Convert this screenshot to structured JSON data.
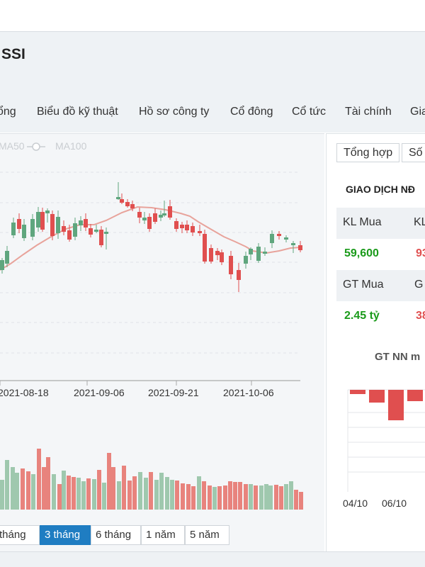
{
  "header": {
    "ticker": "SSI",
    "tabs": [
      "ổng",
      "Biểu đồ kỹ thuật",
      "Hồ sơ công ty",
      "Cổ đông",
      "Cổ tức",
      "Tài chính",
      "Gia"
    ]
  },
  "chart": {
    "legend": [
      "MA50",
      "MA100"
    ],
    "date_labels": [
      "2021-08-18",
      "2021-09-06",
      "2021-09-21",
      "2021-10-06"
    ],
    "colors": {
      "up": "#5fa67e",
      "down": "#e04f4f",
      "ma": "#e8a39b",
      "vol_up": "#9fc8ae",
      "vol_down": "#e8837d"
    }
  },
  "range_buttons": [
    {
      "label": "tháng",
      "active": false
    },
    {
      "label": "3 tháng",
      "active": true
    },
    {
      "label": "6 tháng",
      "active": false
    },
    {
      "label": "1 năm",
      "active": false
    },
    {
      "label": "5 năm",
      "active": false
    }
  ],
  "right_panel": {
    "tabs": [
      "Tổng hợp",
      "Số"
    ],
    "section_title": "GIAO DỊCH NĐ",
    "kl_mua_label": "KL Mua",
    "kl_mua_value": "59,600",
    "kl_ban_label": "KL",
    "kl_ban_value": "93",
    "gt_mua_label": "GT Mua",
    "gt_mua_value": "2.45 tỷ",
    "gt_ban_label": "G",
    "gt_ban_value": "38",
    "gtnn_title": "GT NN m",
    "nn_dates": [
      "04/10",
      "06/10"
    ],
    "colors": {
      "buy": "#1a9a1a",
      "sell": "#e04f4f"
    }
  }
}
